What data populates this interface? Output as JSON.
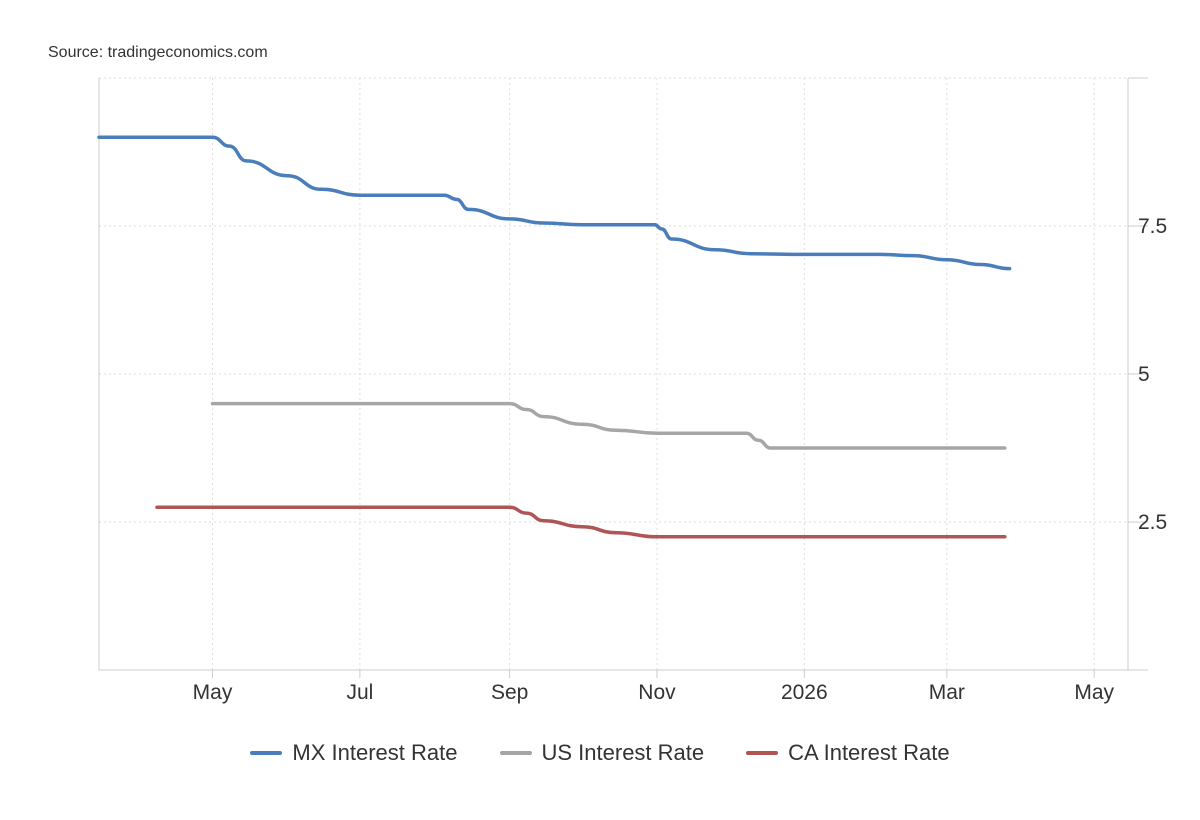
{
  "source": "Source: tradingeconomics.com",
  "colors": {
    "mx": "#4a7ebb",
    "us": "#a6a6a6",
    "ca": "#b05555",
    "grid": "#dddddd",
    "axis": "#cccccc"
  },
  "chart_data": {
    "type": "line",
    "title": "",
    "xlabel": "",
    "ylabel": "",
    "x_range": [
      "2025-03-15",
      "2026-05-15"
    ],
    "ylim": [
      0,
      10
    ],
    "y_ticks": [
      2.5,
      5,
      7.5
    ],
    "y_tick_labels": [
      "2.5",
      "5",
      "7.5"
    ],
    "x_ticks": [
      "2025-05-01",
      "2025-07-01",
      "2025-09-01",
      "2025-11-01",
      "2026-01-01",
      "2026-03-01",
      "2026-05-01"
    ],
    "x_tick_labels": [
      "May",
      "Jul",
      "Sep",
      "Nov",
      "2026",
      "Mar",
      "May"
    ],
    "grid": true,
    "legend_position": "bottom",
    "series": [
      {
        "name": "MX Interest Rate",
        "color_key": "mx",
        "points": [
          [
            "2025-03-15",
            9.0
          ],
          [
            "2025-05-01",
            9.0
          ],
          [
            "2025-05-08",
            8.85
          ],
          [
            "2025-05-15",
            8.6
          ],
          [
            "2025-06-01",
            8.35
          ],
          [
            "2025-06-15",
            8.12
          ],
          [
            "2025-07-01",
            8.02
          ],
          [
            "2025-08-05",
            8.02
          ],
          [
            "2025-08-10",
            7.95
          ],
          [
            "2025-08-15",
            7.78
          ],
          [
            "2025-09-01",
            7.62
          ],
          [
            "2025-09-15",
            7.55
          ],
          [
            "2025-10-01",
            7.52
          ],
          [
            "2025-10-31",
            7.52
          ],
          [
            "2025-11-03",
            7.45
          ],
          [
            "2025-11-07",
            7.28
          ],
          [
            "2025-11-25",
            7.1
          ],
          [
            "2025-12-10",
            7.03
          ],
          [
            "2026-01-01",
            7.02
          ],
          [
            "2026-02-01",
            7.02
          ],
          [
            "2026-02-15",
            7.0
          ],
          [
            "2026-03-01",
            6.93
          ],
          [
            "2026-03-15",
            6.85
          ],
          [
            "2026-03-27",
            6.78
          ]
        ]
      },
      {
        "name": "US Interest Rate",
        "color_key": "us",
        "points": [
          [
            "2025-05-01",
            4.5
          ],
          [
            "2025-09-01",
            4.5
          ],
          [
            "2025-09-08",
            4.4
          ],
          [
            "2025-09-15",
            4.28
          ],
          [
            "2025-10-01",
            4.15
          ],
          [
            "2025-10-15",
            4.05
          ],
          [
            "2025-11-01",
            4.0
          ],
          [
            "2025-12-08",
            4.0
          ],
          [
            "2025-12-13",
            3.88
          ],
          [
            "2025-12-18",
            3.75
          ],
          [
            "2026-03-25",
            3.75
          ]
        ]
      },
      {
        "name": "CA Interest Rate",
        "color_key": "ca",
        "points": [
          [
            "2025-04-08",
            2.75
          ],
          [
            "2025-09-01",
            2.75
          ],
          [
            "2025-09-08",
            2.65
          ],
          [
            "2025-09-15",
            2.52
          ],
          [
            "2025-10-01",
            2.42
          ],
          [
            "2025-10-15",
            2.32
          ],
          [
            "2025-11-01",
            2.25
          ],
          [
            "2026-03-25",
            2.25
          ]
        ]
      }
    ]
  }
}
